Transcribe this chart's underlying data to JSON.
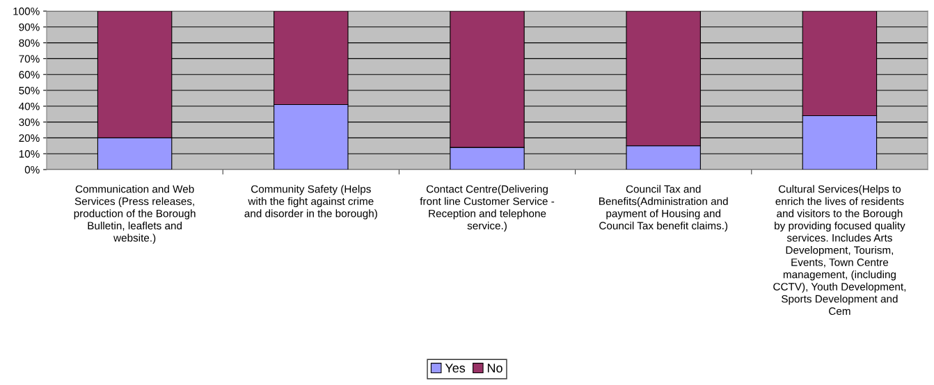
{
  "chart_data": {
    "type": "bar",
    "stacked": true,
    "categories": [
      "Communication and Web\nServices (Press releases,\nproduction of the Borough\nBulletin, leaflets and\nwebsite.)",
      "Community Safety (Helps\nwith the fight against crime\nand disorder in the borough)",
      "Contact Centre(Delivering\nfront line Customer Service -\nReception and telephone\nservice.)",
      "Council Tax and\nBenefits(Administration and\npayment of Housing and\nCouncil Tax benefit claims.)",
      "Cultural Services(Helps to\nenrich the lives of residents\nand visitors to the Borough\nby providing focused quality\nservices. Includes Arts\nDevelopment, Tourism,\nEvents, Town Centre\nmanagement, (including\nCCTV), Youth Development,\nSports Development and\nCem"
    ],
    "series": [
      {
        "name": "Yes",
        "color": "#9999ff",
        "values": [
          20,
          41,
          14,
          15,
          34
        ]
      },
      {
        "name": "No",
        "color": "#993366",
        "values": [
          80,
          59,
          86,
          85,
          66
        ]
      }
    ],
    "ylim": [
      0,
      100
    ],
    "yticks": [
      {
        "value": 0,
        "label": "0%"
      },
      {
        "value": 10,
        "label": "10%"
      },
      {
        "value": 20,
        "label": "20%"
      },
      {
        "value": 30,
        "label": "30%"
      },
      {
        "value": 40,
        "label": "40%"
      },
      {
        "value": 50,
        "label": "50%"
      },
      {
        "value": 60,
        "label": "60%"
      },
      {
        "value": 70,
        "label": "70%"
      },
      {
        "value": 80,
        "label": "80%"
      },
      {
        "value": 90,
        "label": "90%"
      },
      {
        "value": 100,
        "label": "100%"
      }
    ],
    "grid": "y",
    "legend": "bottom"
  }
}
